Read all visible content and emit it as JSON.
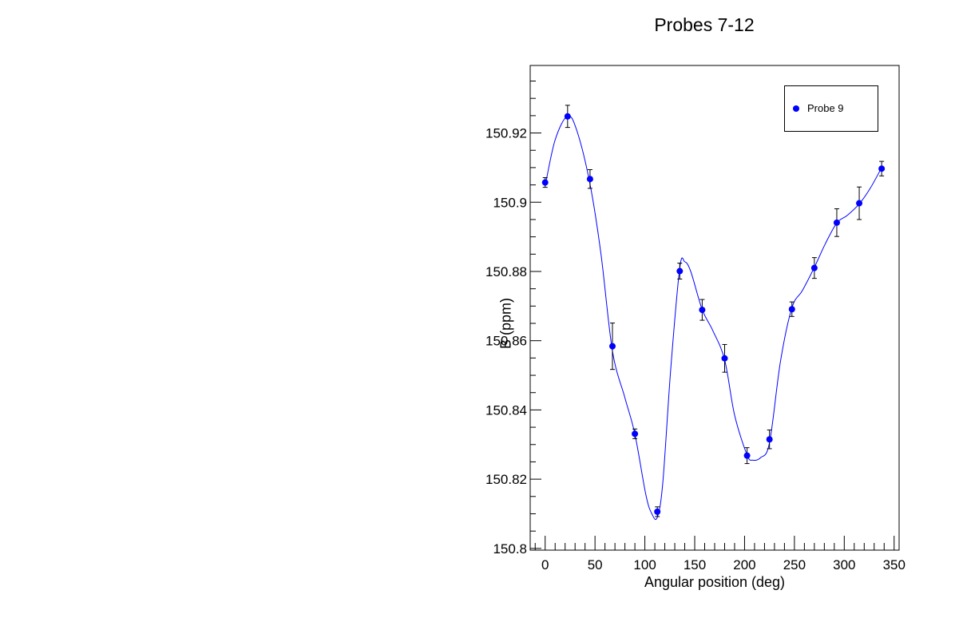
{
  "chart_data": {
    "type": "scatter",
    "title": "Probes 7-12",
    "xlabel": "Angular position (deg)",
    "ylabel": "B (ppm)",
    "xlim": [
      -15,
      355
    ],
    "ylim": [
      150.7995,
      150.9395
    ],
    "x_ticks": [
      0,
      50,
      100,
      150,
      200,
      250,
      300,
      350
    ],
    "y_ticks": [
      150.8,
      150.82,
      150.84,
      150.86,
      150.88,
      150.9,
      150.92
    ],
    "y_tick_labels": [
      "150.8",
      "150.82",
      "150.84",
      "150.86",
      "150.88",
      "150.9",
      "150.92"
    ],
    "grid": false,
    "legend_position": "top-right",
    "series_color": "#0000ff",
    "series": [
      {
        "name": "Probe 9",
        "x": [
          0,
          22.5,
          45,
          67.5,
          90,
          112.5,
          135,
          157.5,
          180,
          202.5,
          225,
          247.5,
          270,
          292.5,
          315,
          337.5
        ],
        "y": [
          150.9057,
          150.9248,
          150.9067,
          150.8584,
          150.8331,
          150.8106,
          150.8801,
          150.8689,
          150.8549,
          150.8268,
          150.8315,
          150.8691,
          150.881,
          150.8941,
          150.8997,
          150.9097
        ],
        "yerr": [
          0.0014,
          0.0032,
          0.0027,
          0.0067,
          0.0014,
          0.0014,
          0.0023,
          0.003,
          0.004,
          0.0023,
          0.0027,
          0.0021,
          0.003,
          0.004,
          0.0047,
          0.0021
        ]
      }
    ],
    "fit_curve": {
      "x": [
        0,
        10,
        22.5,
        32,
        45,
        56,
        67.5,
        80,
        90,
        101,
        107,
        112.5,
        118,
        126,
        135,
        140,
        146,
        157.5,
        168,
        180,
        190,
        202.5,
        208,
        216,
        225,
        236,
        247.5,
        258,
        270,
        281,
        292.5,
        303,
        315,
        326,
        337.5
      ],
      "y": [
        150.9047,
        150.918,
        150.9249,
        150.9205,
        150.9052,
        150.885,
        150.857,
        150.8435,
        150.833,
        150.8155,
        150.81,
        150.809,
        150.819,
        150.852,
        150.881,
        150.8828,
        150.88,
        150.869,
        150.863,
        150.8545,
        150.8385,
        150.827,
        150.8255,
        150.8262,
        150.8305,
        150.854,
        150.8695,
        150.8745,
        150.8812,
        150.888,
        150.894,
        150.8962,
        150.8995,
        150.904,
        150.91
      ]
    }
  }
}
